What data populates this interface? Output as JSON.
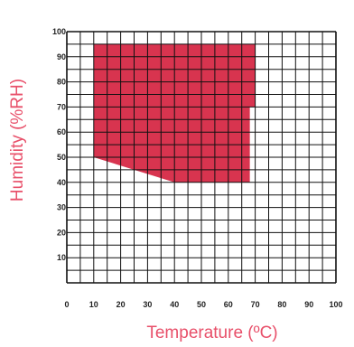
{
  "chart_data": {
    "type": "area",
    "title": "",
    "xlabel": "Temperature (ºC)",
    "ylabel": "Humidity (%RH)",
    "xlim": [
      0,
      100
    ],
    "ylim": [
      0,
      100
    ],
    "x_ticks": [
      0,
      10,
      20,
      30,
      40,
      50,
      60,
      70,
      80,
      90,
      100
    ],
    "y_ticks": [
      10,
      20,
      30,
      40,
      50,
      60,
      70,
      80,
      90,
      100
    ],
    "grid": true,
    "minor_grid_step": 5,
    "region": {
      "points": [
        [
          10,
          95
        ],
        [
          70,
          95
        ],
        [
          70,
          70
        ],
        [
          68,
          70
        ],
        [
          68,
          40
        ],
        [
          40,
          40
        ],
        [
          10,
          50
        ]
      ]
    },
    "colors": {
      "region": "#d8344f",
      "label": "#e8506a",
      "grid": "#111111",
      "tick": "#222222"
    }
  }
}
